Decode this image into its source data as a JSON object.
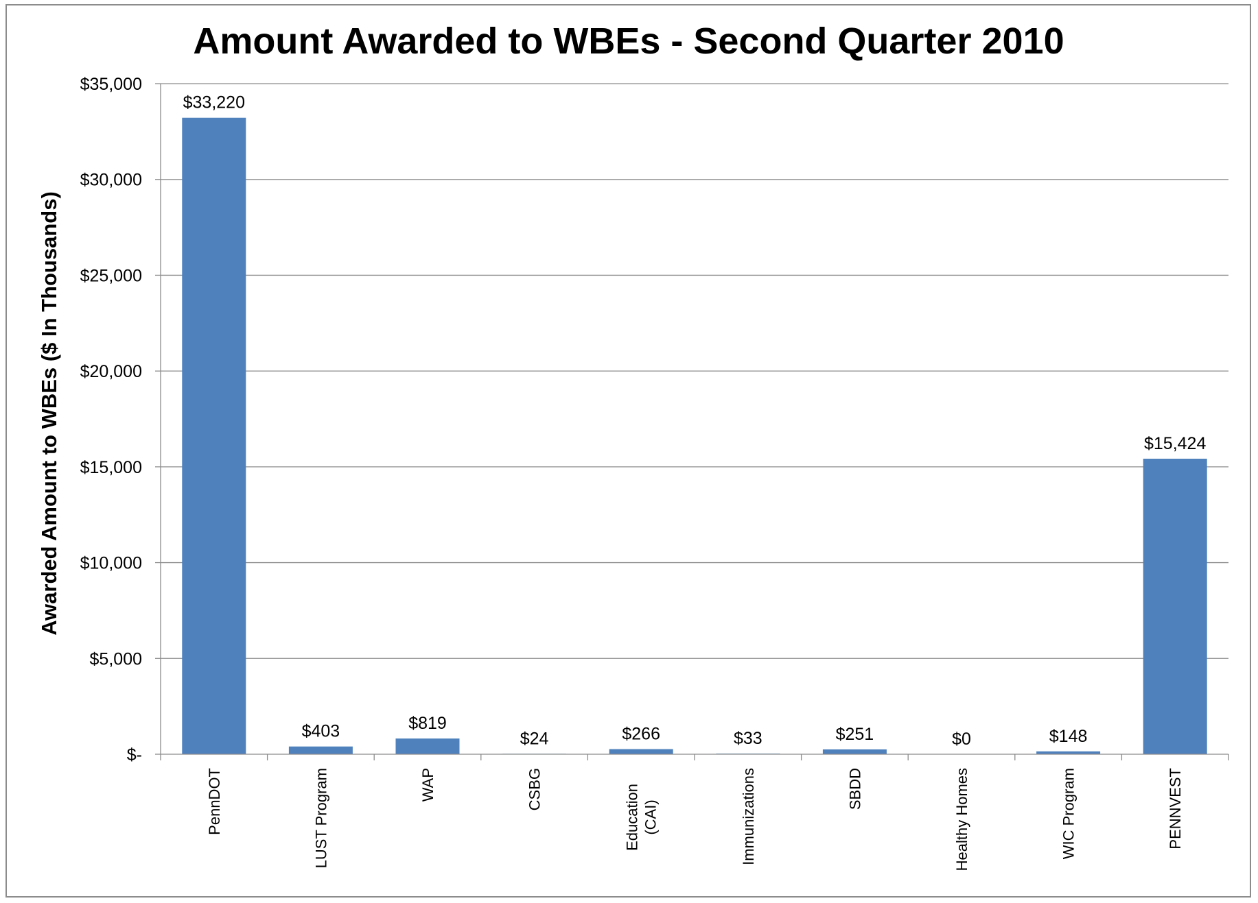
{
  "chart_data": {
    "type": "bar",
    "title": "Amount Awarded to WBEs - Second Quarter 2010",
    "xlabel": "",
    "ylabel": "Awarded Amount to WBEs ($ In Thousands)",
    "ylim": [
      0,
      35000
    ],
    "yticks": [
      0,
      5000,
      10000,
      15000,
      20000,
      25000,
      30000,
      35000
    ],
    "ytick_labels": [
      "$-",
      "$5,000",
      "$10,000",
      "$15,000",
      "$20,000",
      "$25,000",
      "$30,000",
      "$35,000"
    ],
    "categories": [
      [
        "PennDOT"
      ],
      [
        "LUST Program"
      ],
      [
        "WAP"
      ],
      [
        "CSBG"
      ],
      [
        "Education",
        "(CAI)"
      ],
      [
        "Immunizations"
      ],
      [
        "SBDD"
      ],
      [
        "Healthy Homes"
      ],
      [
        "WIC Program"
      ],
      [
        "PENNVEST"
      ]
    ],
    "values": [
      33220,
      403,
      819,
      24,
      266,
      33,
      251,
      0,
      148,
      15424
    ],
    "data_labels": [
      "$33,220",
      "$403",
      "$819",
      "$24",
      "$266",
      "$33",
      "$251",
      "$0",
      "$148",
      "$15,424"
    ],
    "bar_color": "#4f81bd",
    "grid": true,
    "legend": "none"
  }
}
